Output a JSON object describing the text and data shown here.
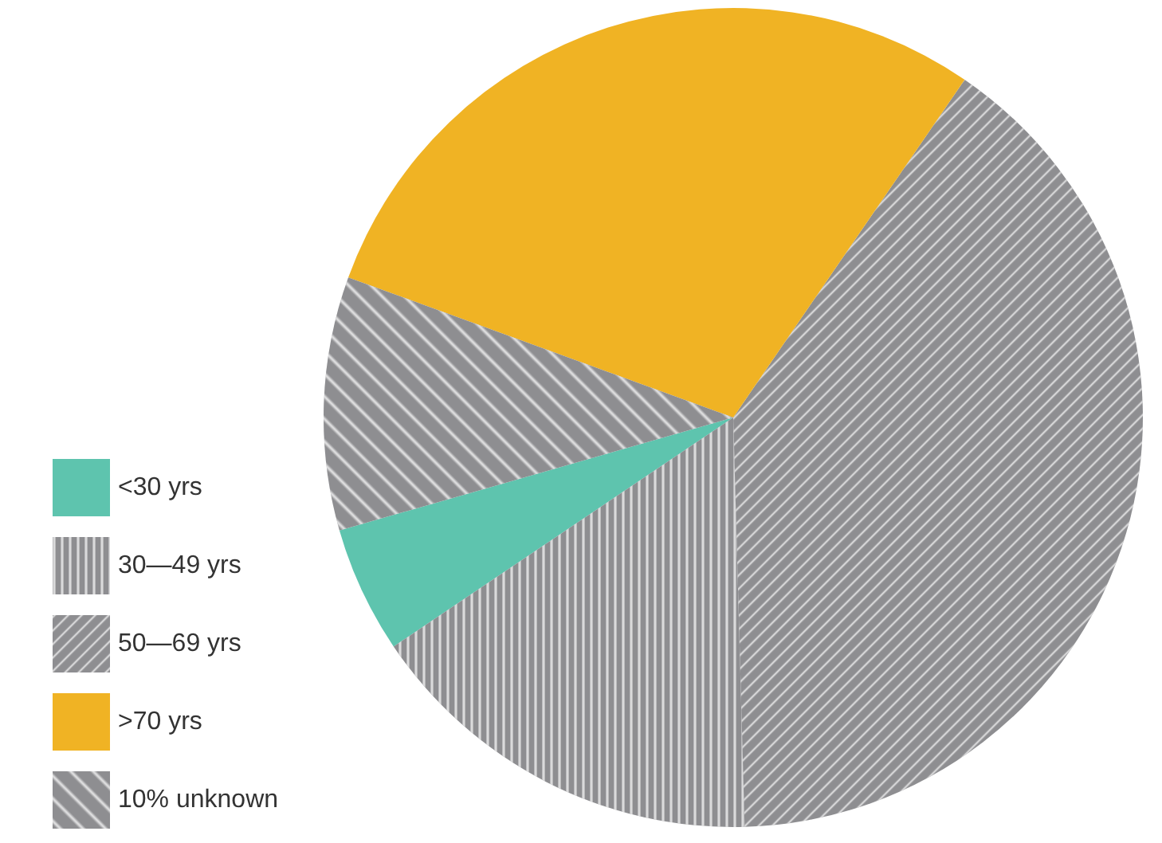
{
  "chart_data": {
    "type": "pie",
    "categories": [
      "<30 yrs",
      "30—49 yrs",
      "50—69 yrs",
      ">70 yrs",
      "10% unknown"
    ],
    "values": [
      5,
      16,
      40,
      29,
      10
    ],
    "colors": [
      "#5ec4ae",
      "#8e8e91",
      "#8e8e91",
      "#f0b324",
      "#8e8e91"
    ],
    "legend": "bottom left"
  }
}
